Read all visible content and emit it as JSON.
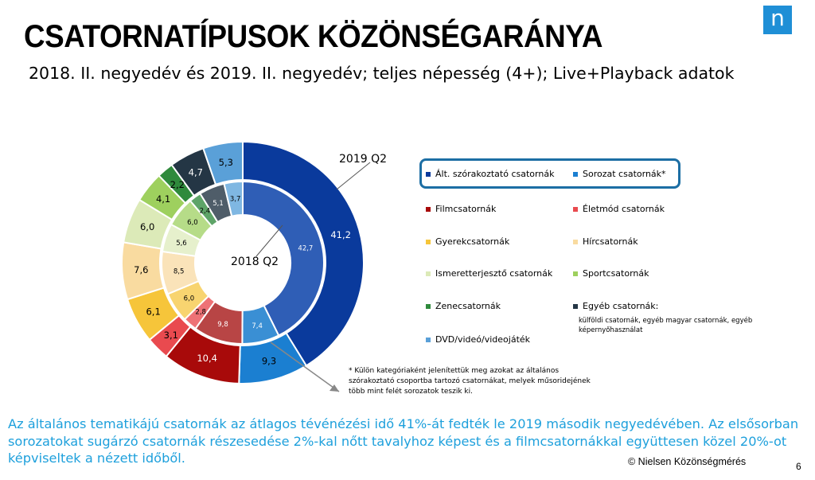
{
  "header": {
    "title": "CSATORNATÍPUSOK KÖZÖNSÉGARÁNYA",
    "subtitle": "2018. II. negyedév és 2019. II. negyedév; teljes népesség (4+); Live+Playback adatok",
    "logo_letter": "n"
  },
  "chart_data": {
    "type": "donut",
    "rings": [
      {
        "name": "2019 Q2",
        "values": [
          41.2,
          9.3,
          10.4,
          3.1,
          6.1,
          7.6,
          6.0,
          4.1,
          2.2,
          4.7,
          5.3
        ],
        "labels": [
          "41,2",
          "9,3",
          "10,4",
          "3,1",
          "6,1",
          "7,6",
          "6,0",
          "4,1",
          "2,2",
          "4,7",
          "5,3"
        ]
      },
      {
        "name": "2018 Q2",
        "values": [
          42.7,
          7.4,
          9.8,
          2.8,
          6.0,
          8.5,
          5.6,
          6.0,
          2.4,
          5.1,
          3.7
        ],
        "labels": [
          "42,7",
          "7,4",
          "9,8",
          "2,8",
          "6,0",
          "8,5",
          "5,6",
          "6,0",
          "2,4",
          "5,1",
          "3,7"
        ]
      }
    ],
    "categories": [
      "Ált. szórakoztató csatornák",
      "Sorozat csatornák*",
      "Filmcsatornák",
      "Életmód csatornák",
      "Gyerekcsatornák",
      "Hírcsatornák",
      "Ismeretterjesztő csatornák",
      "Sportcsatornák",
      "Zenecsatornák",
      "Egyéb csatornák:",
      "DVD/videó/videojáték"
    ],
    "colors": [
      "#0a3a9c",
      "#1b7fd1",
      "#a80a0a",
      "#e94a4f",
      "#f6c53a",
      "#f9dba0",
      "#dceab8",
      "#9ed05e",
      "#2f8a3c",
      "#243645",
      "#5aa0d8"
    ],
    "inner_colors": [
      "#2f5eb6",
      "#3a8fd4",
      "#b84545",
      "#ee7276",
      "#f8d470",
      "#fae3b9",
      "#e6f0cc",
      "#b6dc88",
      "#5ea468",
      "#4f5d69",
      "#7fb7e2"
    ],
    "inner_label_light": [
      true,
      true,
      true,
      false,
      false,
      false,
      false,
      false,
      false,
      true,
      false
    ],
    "outer_label_light": [
      true,
      false,
      true,
      false,
      false,
      false,
      false,
      false,
      false,
      true,
      false
    ],
    "legend": {
      "note_egyeb": "külföldi csatornák, egyéb magyar csatornák, egyéb képernyőhasználat"
    },
    "center_label": "2018 Q2",
    "outer_label": "2019 Q2"
  },
  "footnote": "* Külön kategóriaként jelenítettük meg  azokat az általános szórakoztató csoportba tartozó csatornákat, melyek műsoridejének több mint felét sorozatok teszik ki.",
  "bottom_text": "Az általános tematikájú csatornák az átlagos tévénézési idő 41%-át fedték le 2019 második negyedévében. Az elsősorban sorozatokat sugárzó csatornák részesedése 2%-kal nőtt tavalyhoz képest és a filmcsatornákkal együttesen közel 20%-ot képviseltek a nézett időből.",
  "copyright": "© Nielsen Közönségmérés",
  "page_number": "6"
}
